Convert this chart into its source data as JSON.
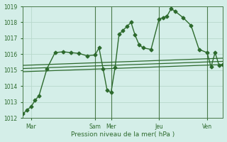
{
  "title": "",
  "xlabel": "Pression niveau de la mer( hPa )",
  "ylabel": "",
  "background_color": "#d4eee8",
  "grid_color": "#b8d8cc",
  "line_color": "#2d6a2d",
  "ylim": [
    1012,
    1019
  ],
  "yticks": [
    1012,
    1013,
    1014,
    1015,
    1016,
    1017,
    1018,
    1019
  ],
  "xlim": [
    0,
    100
  ],
  "day_positions": [
    4,
    36,
    44,
    68,
    92
  ],
  "day_labels": [
    "Mar",
    "Sam",
    "Mer",
    "Jeu",
    "Ven"
  ],
  "vlines_x": [
    36,
    44,
    68,
    92
  ],
  "main_line": {
    "x": [
      0,
      2,
      4,
      6,
      8,
      12,
      16,
      20,
      24,
      28,
      32,
      36,
      38,
      40,
      42,
      44,
      46,
      48,
      50,
      52,
      54,
      56,
      58,
      60,
      64,
      68,
      70,
      72,
      74,
      76,
      80,
      84,
      88,
      92,
      94,
      96,
      98,
      100
    ],
    "y": [
      1012.25,
      1012.5,
      1012.7,
      1013.1,
      1013.4,
      1015.1,
      1016.1,
      1016.15,
      1016.1,
      1016.05,
      1015.9,
      1015.95,
      1016.4,
      1015.1,
      1013.75,
      1013.6,
      1015.15,
      1017.25,
      1017.5,
      1017.75,
      1018.0,
      1017.2,
      1016.6,
      1016.4,
      1016.3,
      1018.2,
      1018.3,
      1018.4,
      1018.85,
      1018.7,
      1018.3,
      1017.8,
      1016.3,
      1016.1,
      1015.2,
      1016.1,
      1015.3,
      1015.35
    ],
    "marker": "D",
    "markersize": 2.5,
    "linewidth": 1.0
  },
  "trend_lines": [
    {
      "x": [
        0,
        100
      ],
      "y": [
        1015.1,
        1015.55
      ],
      "linewidth": 0.9
    },
    {
      "x": [
        0,
        100
      ],
      "y": [
        1015.3,
        1015.75
      ],
      "linewidth": 0.9
    },
    {
      "x": [
        0,
        100
      ],
      "y": [
        1014.9,
        1015.35
      ],
      "linewidth": 0.9
    }
  ],
  "tick_fontsize": 5.5,
  "label_fontsize": 6.5
}
